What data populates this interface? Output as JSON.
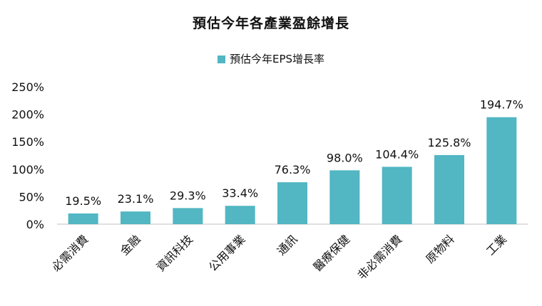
{
  "chart_data": {
    "type": "bar",
    "title": "預估今年各產業盈餘增長",
    "legend": {
      "label": "預估今年EPS增長率",
      "position": "top-center"
    },
    "categories": [
      "必需消費",
      "金融",
      "資訊科技",
      "公用事業",
      "通訊",
      "醫療保健",
      "非必需消費",
      "原物料",
      "工業"
    ],
    "values": [
      19.5,
      23.1,
      29.3,
      33.4,
      76.3,
      98.0,
      104.4,
      125.8,
      194.7
    ],
    "data_labels": [
      "19.5%",
      "23.1%",
      "29.3%",
      "33.4%",
      "76.3%",
      "98.0%",
      "104.4%",
      "125.8%",
      "194.7%"
    ],
    "ylim": [
      0,
      250
    ],
    "yticks": [
      0,
      50,
      100,
      150,
      200,
      250
    ],
    "ytick_labels": [
      "0%",
      "50%",
      "100%",
      "150%",
      "200%",
      "250%"
    ],
    "xlabel": "",
    "ylabel": "",
    "grid": false,
    "colors": {
      "bar": "#52b6c3",
      "axis": "#bfbfbf",
      "text": "#111111"
    }
  }
}
